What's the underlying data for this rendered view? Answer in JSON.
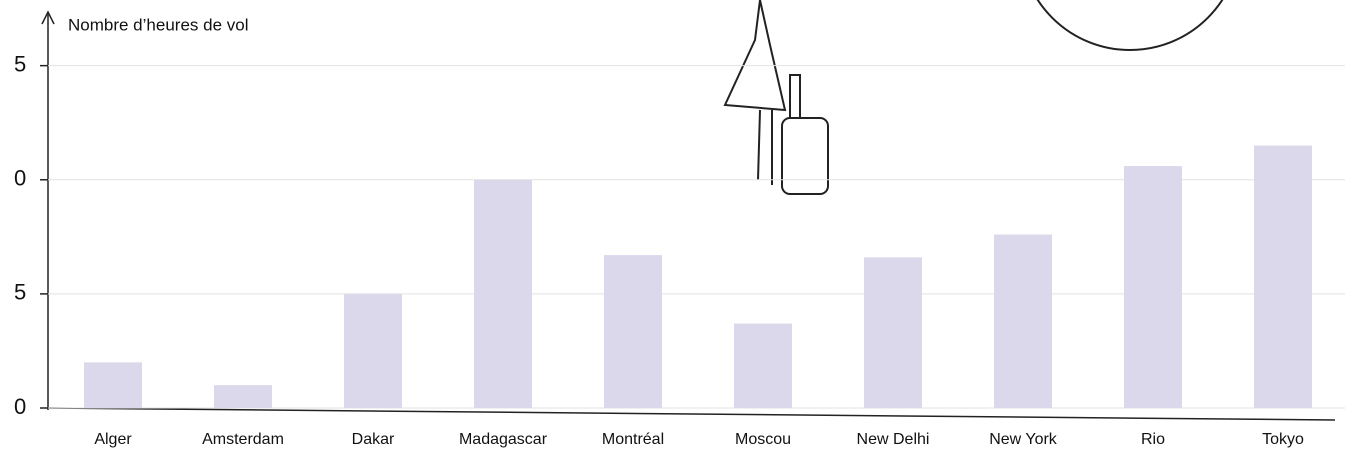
{
  "chart_data": {
    "type": "bar",
    "y_axis_label": "Nombre d’heures de vol",
    "categories": [
      "Alger",
      "Amsterdam",
      "Dakar",
      "Madagascar",
      "Montréal",
      "Moscou",
      "New Delhi",
      "New York",
      "Rio",
      "Tokyo"
    ],
    "values": [
      2,
      1,
      5,
      10,
      6.7,
      3.7,
      6.6,
      7.6,
      10.6,
      11.5
    ],
    "color": "#dcd8ec",
    "ylim": [
      0,
      17
    ],
    "yticks": [
      0,
      {
        "value": 5,
        "label": "5"
      },
      {
        "value": 10,
        "label": "0"
      },
      {
        "value": 15,
        "label": "5"
      }
    ],
    "grid": true
  }
}
